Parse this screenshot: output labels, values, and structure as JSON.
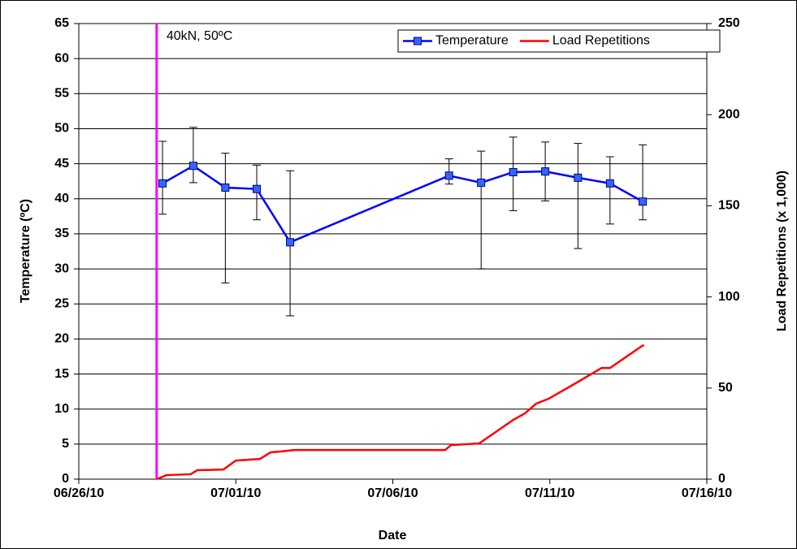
{
  "chart_data": {
    "type": "line",
    "x_label": "Date",
    "y_label": "Temperature (ºC)",
    "y2_label": "Load Repetitions (x 1,000)",
    "xlim": [
      "2010-06-26",
      "2010-07-16"
    ],
    "xticks": [
      {
        "value": "2010-06-26",
        "label": "06/26/10"
      },
      {
        "value": "2010-07-01",
        "label": "07/01/10"
      },
      {
        "value": "2010-07-06",
        "label": "07/06/10"
      },
      {
        "value": "2010-07-11",
        "label": "07/11/10"
      },
      {
        "value": "2010-07-16",
        "label": "07/16/10"
      }
    ],
    "ylim": [
      0,
      65
    ],
    "yticks": [
      0,
      5,
      10,
      15,
      20,
      25,
      30,
      35,
      40,
      45,
      50,
      55,
      60,
      65
    ],
    "y2lim": [
      0,
      250
    ],
    "y2ticks": [
      0,
      50,
      100,
      150,
      200,
      250
    ],
    "grid": true,
    "legend": "upper right",
    "annotation": {
      "x": "2010-06-28T11:30:00Z",
      "text": "40kN, 50ºC",
      "color": "#ff00ff"
    },
    "series": [
      {
        "name": "Temperature",
        "color": "#0000ff",
        "marker": "square",
        "marker_color": "#3366ff",
        "x": [
          "2010-06-28T16:00:00Z",
          "2010-06-29T15:30:00Z",
          "2010-06-30T16:00:00Z",
          "2010-07-01T16:00:00Z",
          "2010-07-02T17:30:00Z",
          "2010-07-07T19:00:00Z",
          "2010-07-08T19:30:00Z",
          "2010-07-09T20:00:00Z",
          "2010-07-10T20:30:00Z",
          "2010-07-11T21:30:00Z",
          "2010-07-12T22:00:00Z",
          "2010-07-13T23:00:00Z"
        ],
        "values": [
          42.2,
          44.7,
          41.6,
          41.4,
          33.8,
          43.3,
          42.3,
          43.8,
          43.9,
          43.0,
          42.2,
          39.6
        ],
        "error_high": [
          48.2,
          50.2,
          46.5,
          44.8,
          44.0,
          45.7,
          46.8,
          48.8,
          48.1,
          47.9,
          46.0,
          47.7
        ],
        "error_low": [
          37.8,
          42.3,
          28.0,
          37.0,
          23.3,
          42.1,
          30.0,
          38.3,
          39.7,
          32.9,
          36.4,
          37.0
        ]
      },
      {
        "name": "Load Repetitions",
        "color": "#ff0000",
        "axis": "y2",
        "x": [
          "2010-06-28T11:30:00Z",
          "2010-06-28T16:00:00Z",
          "2010-06-28T19:00:00Z",
          "2010-06-29T13:30:00Z",
          "2010-06-29T18:30:00Z",
          "2010-06-30T14:30:00Z",
          "2010-07-01T00:00:00Z",
          "2010-07-01T18:30:00Z",
          "2010-07-02T02:30:00Z",
          "2010-07-02T10:30:00Z",
          "2010-07-02T20:30:00Z",
          "2010-07-07T16:00:00Z",
          "2010-07-07T20:30:00Z",
          "2010-07-08T18:00:00Z",
          "2010-07-09T20:00:00Z",
          "2010-07-10T05:00:00Z",
          "2010-07-10T13:30:00Z",
          "2010-07-10T23:00:00Z",
          "2010-07-11T17:30:00Z",
          "2010-07-12T15:30:00Z",
          "2010-07-12T22:00:00Z",
          "2010-07-13T22:30:00Z",
          "2010-07-14T00:00:00Z"
        ],
        "values": [
          0,
          1.3,
          2.2,
          2.7,
          4.9,
          5.3,
          10.2,
          11.1,
          14.7,
          15.2,
          16.0,
          16.0,
          18.7,
          19.6,
          32.5,
          36.1,
          41.4,
          44.1,
          51.7,
          61.0,
          61.0,
          73.1,
          73.5
        ]
      }
    ]
  }
}
